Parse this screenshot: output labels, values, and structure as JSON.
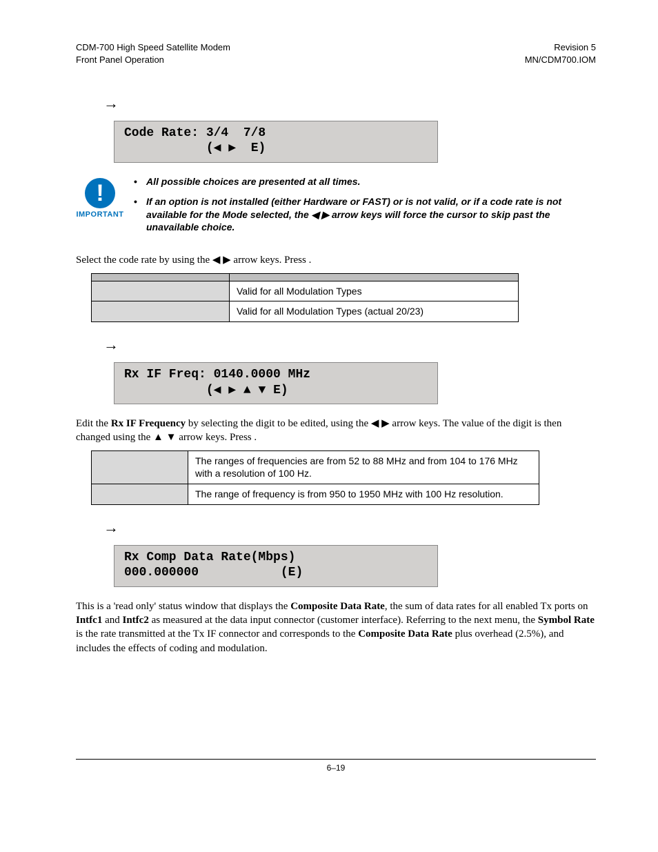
{
  "header": {
    "left_line1": "CDM-700 High Speed Satellite Modem",
    "left_line2": "Front Panel Operation",
    "right_line1": "Revision 5",
    "right_line2": "MN/CDM700.IOM"
  },
  "important_label": "IMPORTANT",
  "section1": {
    "heading_arrow": "→",
    "lcd_line1": "Code Rate: 3/4  7/8",
    "lcd_line2": "           (◀ ▶  E)",
    "bullets": [
      "All possible choices are presented at all times.",
      "If an option is not installed (either Hardware or FAST) or is not valid, or if a code rate is not available for the Mode selected, the ◀ ▶ arrow keys will force the cursor to skip past the unavailable choice."
    ],
    "body_text_pre": "Select the code rate by using the ◀ ▶ arrow keys. Press ",
    "body_text_post": ".",
    "table": {
      "headers": [
        "",
        ""
      ],
      "rows": [
        [
          "",
          "Valid for all Modulation Types"
        ],
        [
          "",
          "Valid for all Modulation Types (actual 20/23)"
        ]
      ]
    }
  },
  "section2": {
    "heading_arrow": "→",
    "lcd_line1": "Rx IF Freq: 0140.0000 MHz",
    "lcd_line2": "           (◀ ▶ ▲ ▼ E)",
    "body_pre": "Edit the ",
    "body_bold1": "Rx IF Frequency",
    "body_mid1": " by selecting the digit to be edited, using the ◀ ▶ arrow keys. The value of the digit is then changed using the ▲ ▼  arrow keys. Press ",
    "body_post": ".",
    "table": {
      "rows": [
        [
          "",
          "The ranges of frequencies are from 52 to 88 MHz and from 104 to 176 MHz with a resolution of 100 Hz."
        ],
        [
          "",
          "The range of frequency is from 950 to 1950 MHz with 100 Hz resolution."
        ]
      ]
    }
  },
  "section3": {
    "heading_arrow": "→",
    "lcd_line1": "Rx Comp Data Rate(Mbps)",
    "lcd_line2": "000.000000           (E)",
    "body_pre": "This is a 'read only' status window that displays the ",
    "bold1": "Composite Data Rate",
    "mid1": ", the sum of data rates for all enabled Tx ports on ",
    "bold2": "Intfc1",
    "mid2": " and ",
    "bold3": "Intfc2",
    "mid3": " as measured at the data input connector (customer interface). Referring to the next menu, the ",
    "bold4": "Symbol Rate",
    "mid4": " is the rate transmitted at the Tx IF connector and corresponds to the ",
    "bold5": "Composite Data Rate",
    "mid5": " plus overhead (2.5%), and includes the effects of coding and modulation."
  },
  "footer": "6–19",
  "colors": {
    "lcd_bg": "#d2d0ce",
    "blue": "#0072bc",
    "table_header_bg": "#bfbfbf",
    "table_leftcol_bg": "#d9d9d9"
  }
}
